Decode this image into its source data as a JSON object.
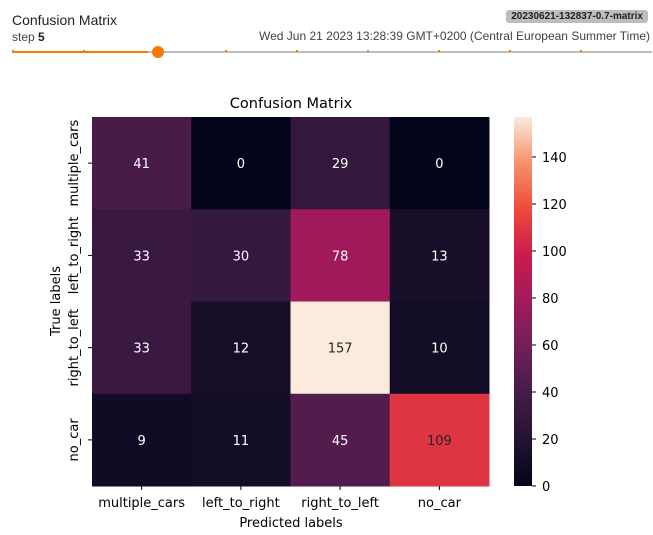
{
  "card": {
    "title": "Confusion Matrix",
    "step_label": "step",
    "step_value": "5",
    "run_tag": "20230621-132837-0.7-matrix",
    "timestamp": "Wed Jun 21 2023 13:28:39 GMT+0200 (Central European Summer Time)"
  },
  "slider": {
    "total_steps": 9,
    "current_step_index": 1,
    "accent": "#f57c00",
    "track_color": "#bdbdbd"
  },
  "chart_data": {
    "type": "heatmap",
    "title": "Confusion Matrix",
    "xlabel": "Predicted labels",
    "ylabel": "True labels",
    "x_categories": [
      "multiple_cars",
      "left_to_right",
      "right_to_left",
      "no_car"
    ],
    "y_categories": [
      "multiple_cars",
      "left_to_right",
      "right_to_left",
      "no_car"
    ],
    "values": [
      [
        41,
        0,
        29,
        0
      ],
      [
        33,
        30,
        78,
        13
      ],
      [
        33,
        12,
        157,
        10
      ],
      [
        9,
        11,
        45,
        109
      ]
    ],
    "colorbar": {
      "min": 0,
      "max": 157,
      "ticks": [
        0,
        20,
        40,
        60,
        80,
        100,
        120,
        140
      ],
      "colormap": "rocket"
    },
    "annotations": true
  }
}
